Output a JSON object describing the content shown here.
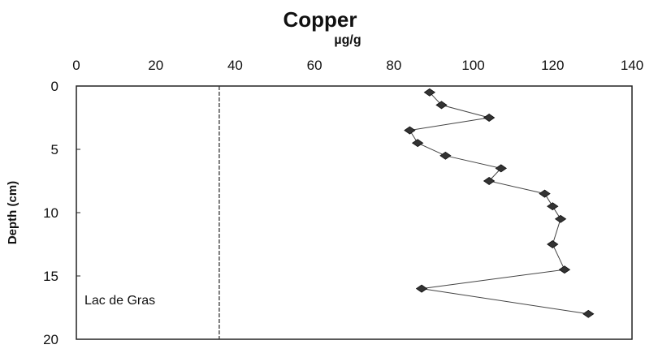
{
  "chart_data": {
    "type": "line",
    "title": "Copper",
    "unit_label": "µg/g",
    "xlabel": "µg/g",
    "ylabel": "Depth (cm)",
    "xlim": [
      0,
      140
    ],
    "ylim": [
      0,
      20
    ],
    "x_ticks": [
      0,
      20,
      40,
      60,
      80,
      100,
      120,
      140
    ],
    "y_ticks": [
      0,
      5,
      10,
      15,
      20
    ],
    "x_axis_position": "top",
    "y_axis_inverted": true,
    "grid": false,
    "reference_line": {
      "x": 36,
      "style": "dashed"
    },
    "annotation": "Lac de Gras",
    "series": [
      {
        "marker": "filled-diamond",
        "color": "#333333",
        "points": [
          {
            "x": 89,
            "y": 0.5
          },
          {
            "x": 92,
            "y": 1.5
          },
          {
            "x": 104,
            "y": 2.5
          },
          {
            "x": 84,
            "y": 3.5
          },
          {
            "x": 86,
            "y": 4.5
          },
          {
            "x": 93,
            "y": 5.5
          },
          {
            "x": 107,
            "y": 6.5
          },
          {
            "x": 104,
            "y": 7.5
          },
          {
            "x": 118,
            "y": 8.5
          },
          {
            "x": 120,
            "y": 9.5
          },
          {
            "x": 122,
            "y": 10.5
          },
          {
            "x": 120,
            "y": 12.5
          },
          {
            "x": 123,
            "y": 14.5
          },
          {
            "x": 87,
            "y": 16.0
          },
          {
            "x": 129,
            "y": 18.0
          }
        ]
      }
    ]
  }
}
